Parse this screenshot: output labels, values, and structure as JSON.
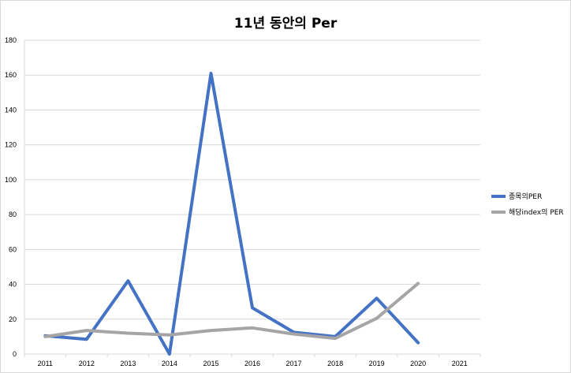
{
  "chart_data": {
    "type": "line",
    "title": "11년 동안의 Per",
    "xlabel": "",
    "ylabel": "",
    "categories": [
      "2011",
      "2012",
      "2013",
      "2014",
      "2015",
      "2016",
      "2017",
      "2018",
      "2019",
      "2020",
      "2021"
    ],
    "ylim": [
      0,
      180
    ],
    "yticks": [
      0,
      20,
      40,
      60,
      80,
      100,
      120,
      140,
      160,
      180
    ],
    "grid": true,
    "legend_position": "right",
    "series": [
      {
        "name": "종목의PER",
        "color": "#4472c4",
        "values": [
          10.5,
          8.5,
          42,
          0,
          161,
          26.5,
          12.5,
          10,
          32,
          6.5,
          null
        ]
      },
      {
        "name": "해당index의 PER",
        "color": "#a5a5a5",
        "values": [
          10,
          13.5,
          12,
          11,
          13.5,
          15,
          11.5,
          9,
          20.5,
          40.5,
          null
        ]
      }
    ]
  }
}
